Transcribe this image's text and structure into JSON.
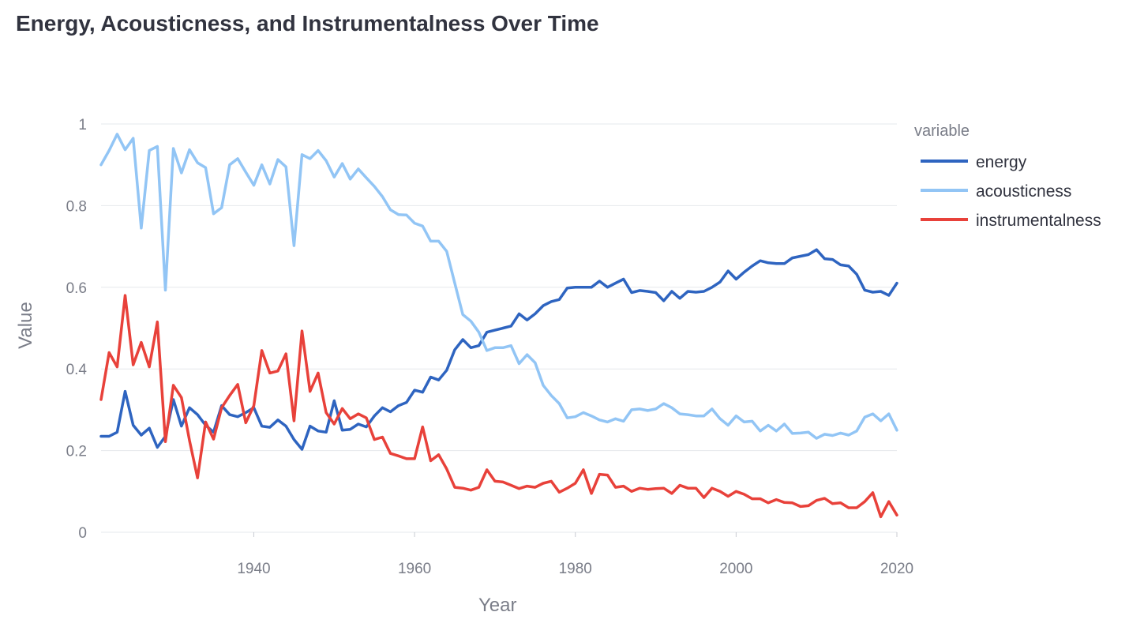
{
  "chart_data": {
    "type": "line",
    "title": "Energy, Acousticness, and Instrumentalness Over Time",
    "xlabel": "Year",
    "ylabel": "Value",
    "xlim": [
      1921,
      2020
    ],
    "ylim": [
      0,
      1
    ],
    "x_ticks": [
      1940,
      1960,
      1980,
      2000,
      2020
    ],
    "y_ticks": [
      0,
      0.2,
      0.4,
      0.6,
      0.8,
      1
    ],
    "y_tick_labels": [
      "0",
      "0.2",
      "0.4",
      "0.6",
      "0.8",
      "1"
    ],
    "grid": "horizontal",
    "legend": {
      "title": "variable",
      "placement": "right"
    },
    "x": [
      1921,
      1922,
      1923,
      1924,
      1925,
      1926,
      1927,
      1928,
      1929,
      1930,
      1931,
      1932,
      1933,
      1934,
      1935,
      1936,
      1937,
      1938,
      1939,
      1940,
      1941,
      1942,
      1943,
      1944,
      1945,
      1946,
      1947,
      1948,
      1949,
      1950,
      1951,
      1952,
      1953,
      1954,
      1955,
      1956,
      1957,
      1958,
      1959,
      1960,
      1961,
      1962,
      1963,
      1964,
      1965,
      1966,
      1967,
      1968,
      1969,
      1970,
      1971,
      1972,
      1973,
      1974,
      1975,
      1976,
      1977,
      1978,
      1979,
      1980,
      1981,
      1982,
      1983,
      1984,
      1985,
      1986,
      1987,
      1988,
      1989,
      1990,
      1991,
      1992,
      1993,
      1994,
      1995,
      1996,
      1997,
      1998,
      1999,
      2000,
      2001,
      2002,
      2003,
      2004,
      2005,
      2006,
      2007,
      2008,
      2009,
      2010,
      2011,
      2012,
      2013,
      2014,
      2015,
      2016,
      2017,
      2018,
      2019,
      2020
    ],
    "series": [
      {
        "name": "energy",
        "color": "#2e64c0",
        "values": [
          0.235,
          0.235,
          0.245,
          0.345,
          0.262,
          0.238,
          0.255,
          0.208,
          0.235,
          0.325,
          0.26,
          0.305,
          0.288,
          0.262,
          0.245,
          0.31,
          0.288,
          0.283,
          0.293,
          0.305,
          0.26,
          0.257,
          0.275,
          0.26,
          0.227,
          0.203,
          0.26,
          0.248,
          0.245,
          0.322,
          0.25,
          0.252,
          0.265,
          0.258,
          0.285,
          0.305,
          0.295,
          0.31,
          0.318,
          0.348,
          0.343,
          0.38,
          0.373,
          0.397,
          0.447,
          0.472,
          0.452,
          0.457,
          0.49,
          0.495,
          0.5,
          0.505,
          0.535,
          0.52,
          0.535,
          0.555,
          0.565,
          0.57,
          0.598,
          0.6,
          0.6,
          0.6,
          0.615,
          0.6,
          0.61,
          0.62,
          0.587,
          0.592,
          0.59,
          0.587,
          0.567,
          0.59,
          0.573,
          0.59,
          0.588,
          0.59,
          0.6,
          0.613,
          0.64,
          0.62,
          0.637,
          0.652,
          0.665,
          0.66,
          0.658,
          0.658,
          0.672,
          0.676,
          0.68,
          0.692,
          0.67,
          0.668,
          0.655,
          0.652,
          0.632,
          0.593,
          0.588,
          0.59,
          0.58,
          0.61
        ]
      },
      {
        "name": "acousticness",
        "color": "#92c5f5",
        "values": [
          0.9,
          0.935,
          0.975,
          0.937,
          0.965,
          0.745,
          0.935,
          0.945,
          0.593,
          0.94,
          0.88,
          0.937,
          0.905,
          0.893,
          0.78,
          0.795,
          0.9,
          0.915,
          0.882,
          0.85,
          0.9,
          0.853,
          0.913,
          0.895,
          0.702,
          0.925,
          0.915,
          0.935,
          0.91,
          0.87,
          0.903,
          0.865,
          0.89,
          0.868,
          0.847,
          0.822,
          0.79,
          0.778,
          0.777,
          0.757,
          0.75,
          0.713,
          0.713,
          0.688,
          0.61,
          0.533,
          0.517,
          0.49,
          0.445,
          0.452,
          0.452,
          0.457,
          0.413,
          0.435,
          0.415,
          0.36,
          0.335,
          0.315,
          0.28,
          0.283,
          0.293,
          0.285,
          0.275,
          0.27,
          0.278,
          0.272,
          0.3,
          0.302,
          0.298,
          0.302,
          0.315,
          0.305,
          0.29,
          0.288,
          0.285,
          0.285,
          0.302,
          0.278,
          0.262,
          0.285,
          0.27,
          0.272,
          0.248,
          0.262,
          0.248,
          0.265,
          0.242,
          0.243,
          0.245,
          0.23,
          0.24,
          0.237,
          0.243,
          0.238,
          0.248,
          0.282,
          0.29,
          0.273,
          0.29,
          0.25
        ]
      },
      {
        "name": "instrumentalness",
        "color": "#e8413a",
        "values": [
          0.325,
          0.44,
          0.405,
          0.58,
          0.41,
          0.465,
          0.405,
          0.515,
          0.222,
          0.36,
          0.33,
          0.225,
          0.133,
          0.27,
          0.228,
          0.305,
          0.335,
          0.362,
          0.268,
          0.31,
          0.445,
          0.39,
          0.395,
          0.437,
          0.273,
          0.493,
          0.345,
          0.39,
          0.293,
          0.265,
          0.303,
          0.278,
          0.29,
          0.28,
          0.227,
          0.233,
          0.193,
          0.187,
          0.18,
          0.18,
          0.258,
          0.175,
          0.19,
          0.155,
          0.11,
          0.108,
          0.103,
          0.11,
          0.153,
          0.125,
          0.123,
          0.115,
          0.107,
          0.113,
          0.11,
          0.12,
          0.125,
          0.098,
          0.108,
          0.12,
          0.153,
          0.095,
          0.142,
          0.14,
          0.11,
          0.113,
          0.1,
          0.108,
          0.105,
          0.107,
          0.108,
          0.095,
          0.115,
          0.108,
          0.108,
          0.085,
          0.108,
          0.1,
          0.088,
          0.1,
          0.093,
          0.082,
          0.082,
          0.072,
          0.08,
          0.073,
          0.072,
          0.063,
          0.065,
          0.078,
          0.083,
          0.07,
          0.072,
          0.06,
          0.06,
          0.075,
          0.097,
          0.038,
          0.075,
          0.042
        ]
      }
    ]
  }
}
